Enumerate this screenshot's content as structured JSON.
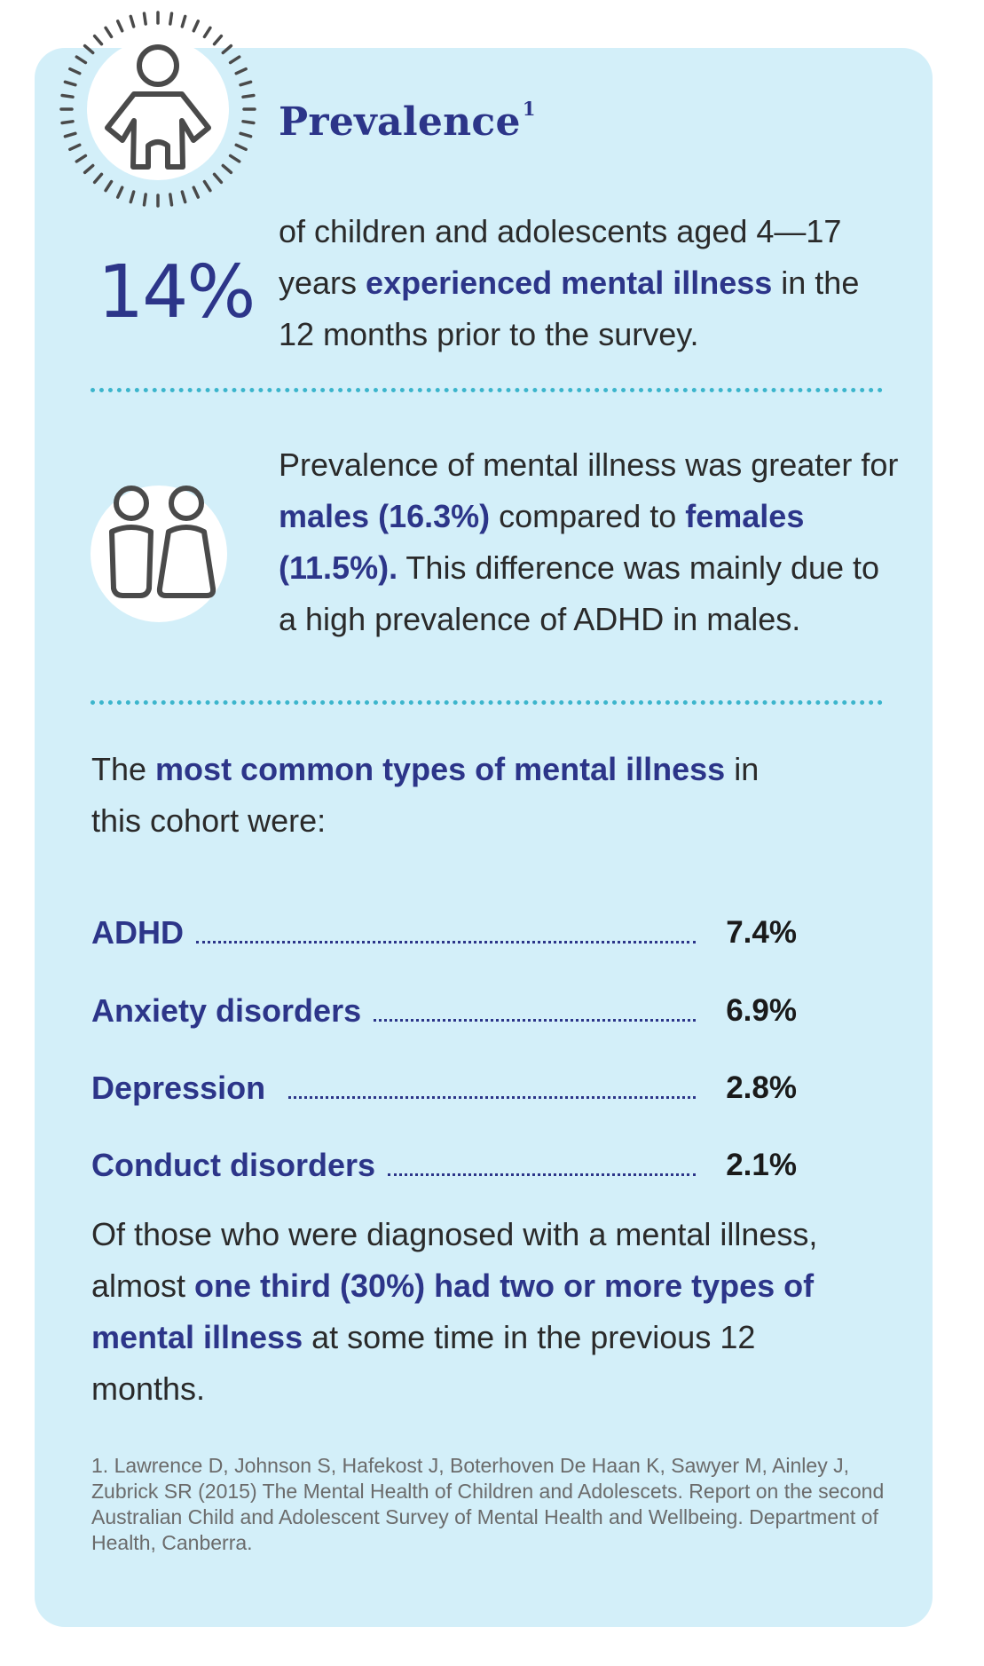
{
  "header": {
    "title": "Prevalence",
    "title_sup": "1",
    "icon": "child-icon"
  },
  "stat": {
    "value": "14%",
    "text_1": "of children and adolescents aged 4—17 years ",
    "text_highlight": "experienced mental illness",
    "text_2": " in the 12 months prior to the survey."
  },
  "gender": {
    "icon": "male-female-icon",
    "t1": "Prevalence of mental illness was greater for ",
    "h1": "males (16.3%)",
    "t2": " compared to ",
    "h2": "females (11.5%).",
    "t3": " This difference was mainly due to a high prevalence of ADHD in males."
  },
  "types": {
    "intro_1": "The ",
    "intro_highlight": "most common types of mental illness",
    "intro_2": " in this cohort were:",
    "items": [
      {
        "label": "ADHD",
        "value": "7.4%"
      },
      {
        "label": "Anxiety disorders",
        "value": "6.9%"
      },
      {
        "label": "Depression",
        "value": "2.8%"
      },
      {
        "label": "Conduct disorders",
        "value": "2.1%"
      }
    ]
  },
  "comorbidity": {
    "t1": "Of those who were diagnosed with a mental illness, almost ",
    "highlight": "one third (30%) had two or more types of mental illness",
    "t2": " at some time in the previous 12 months."
  },
  "footnote": "1. Lawrence D, Johnson S, Hafekost J, Boterhoven De Haan K, Sawyer M, Ainley J, Zubrick SR (2015) The Mental Health of Children and Adolescets. Report on the second Australian Child and Adolescent Survey of Mental Health and Wellbeing. Department of Health, Canberra.",
  "colors": {
    "card_background": "#d3eff9",
    "accent_navy": "#2c3589",
    "divider_teal": "#3cb5cc",
    "icon_gray": "#4a4a4a"
  }
}
